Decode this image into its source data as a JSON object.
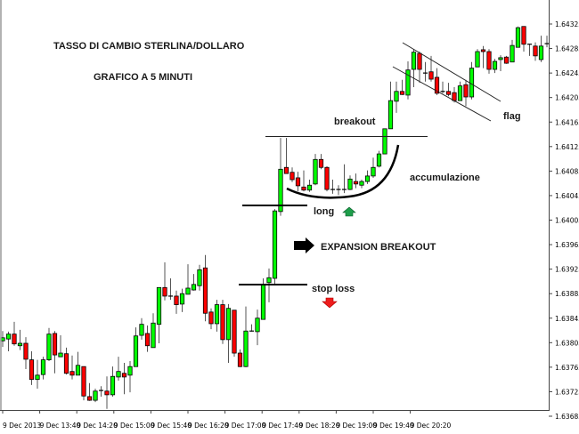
{
  "chart_data": {
    "type": "candlestick",
    "title": "TASSO DI CAMBIO STERLINA/DOLLARO",
    "subtitle": "GRAFICO A 5 MINUTI",
    "xlabel": "",
    "ylabel": "",
    "ylim": [
      1.63685,
      1.64325
    ],
    "y_ticks": [
      "1.64325",
      "1.64285",
      "1.64245",
      "1.64205",
      "1.64165",
      "1.64125",
      "1.64085",
      "1.64045",
      "1.64005",
      "1.63965",
      "1.63925",
      "1.63885",
      "1.63845",
      "1.63805",
      "1.63765",
      "1.63725",
      "1.63685"
    ],
    "x_ticks": [
      "9 Dec 2013",
      "9 Dec 13:40",
      "9 Dec 14:20",
      "9 Dec 15:00",
      "9 Dec 15:40",
      "9 Dec 16:20",
      "9 Dec 17:00",
      "9 Dec 17:40",
      "9 Dec 18:20",
      "9 Dec 19:00",
      "9 Dec 19:40",
      "9 Dec 20:20"
    ],
    "grid": false,
    "colors": {
      "up": "#00ff00",
      "down": "#ff0000",
      "outline": "#000000"
    },
    "ohlc_fields": [
      "open",
      "high",
      "low",
      "close"
    ],
    "candles": [
      [
        1.63808,
        1.63824,
        1.63798,
        1.63813
      ],
      [
        1.63811,
        1.63823,
        1.63791,
        1.63819
      ],
      [
        1.63819,
        1.63839,
        1.638,
        1.63803
      ],
      [
        1.638,
        1.63826,
        1.63793,
        1.63804
      ],
      [
        1.63804,
        1.63814,
        1.63762,
        1.63778
      ],
      [
        1.63777,
        1.63791,
        1.63736,
        1.63745
      ],
      [
        1.63745,
        1.63777,
        1.6373,
        1.63752
      ],
      [
        1.63753,
        1.63782,
        1.63745,
        1.63777
      ],
      [
        1.63777,
        1.63829,
        1.63775,
        1.63819
      ],
      [
        1.6382,
        1.63824,
        1.63755,
        1.63785
      ],
      [
        1.63782,
        1.63817,
        1.63782,
        1.63788
      ],
      [
        1.63787,
        1.63797,
        1.63753,
        1.63755
      ],
      [
        1.63758,
        1.63784,
        1.63745,
        1.63752
      ],
      [
        1.63752,
        1.6379,
        1.63752,
        1.63768
      ],
      [
        1.63766,
        1.63766,
        1.63711,
        1.63718
      ],
      [
        1.63717,
        1.63739,
        1.6371,
        1.63711
      ],
      [
        1.63711,
        1.6373,
        1.63708,
        1.63726
      ],
      [
        1.63727,
        1.63734,
        1.63717,
        1.63727
      ],
      [
        1.63726,
        1.6375,
        1.63697,
        1.6372
      ],
      [
        1.6372,
        1.63766,
        1.63717,
        1.6375
      ],
      [
        1.63749,
        1.63782,
        1.63743,
        1.63758
      ],
      [
        1.63755,
        1.63772,
        1.63721,
        1.63749
      ],
      [
        1.63752,
        1.63775,
        1.63724,
        1.63766
      ],
      [
        1.63766,
        1.6383,
        1.63766,
        1.63816
      ],
      [
        1.63817,
        1.63845,
        1.6381,
        1.63835
      ],
      [
        1.6382,
        1.63833,
        1.6379,
        1.638
      ],
      [
        1.63797,
        1.63853,
        1.63797,
        1.63837
      ],
      [
        1.63835,
        1.63895,
        1.63804,
        1.63895
      ],
      [
        1.63895,
        1.63936,
        1.63874,
        1.63881
      ],
      [
        1.63881,
        1.6391,
        1.63875,
        1.63881
      ],
      [
        1.63881,
        1.6389,
        1.63852,
        1.63867
      ],
      [
        1.63868,
        1.63893,
        1.63855,
        1.63885
      ],
      [
        1.63884,
        1.63933,
        1.63884,
        1.63894
      ],
      [
        1.63891,
        1.63917,
        1.6389,
        1.639
      ],
      [
        1.63898,
        1.63932,
        1.6389,
        1.63924
      ],
      [
        1.63927,
        1.63948,
        1.6384,
        1.63853
      ],
      [
        1.63855,
        1.63861,
        1.63827,
        1.63836
      ],
      [
        1.63836,
        1.63875,
        1.63823,
        1.63867
      ],
      [
        1.63867,
        1.63875,
        1.63803,
        1.6381
      ],
      [
        1.6381,
        1.63868,
        1.63772,
        1.63861
      ],
      [
        1.63858,
        1.63858,
        1.63782,
        1.63788
      ],
      [
        1.63788,
        1.63794,
        1.63765,
        1.63766
      ],
      [
        1.63766,
        1.63864,
        1.63765,
        1.63824
      ],
      [
        1.63824,
        1.63835,
        1.63823,
        1.63824
      ],
      [
        1.63823,
        1.63859,
        1.63801,
        1.63845
      ],
      [
        1.63843,
        1.6391,
        1.63843,
        1.639
      ],
      [
        1.63903,
        1.63926,
        1.63871,
        1.63911
      ],
      [
        1.6391,
        1.64023,
        1.639,
        1.6402
      ],
      [
        1.64019,
        1.64139,
        1.64012,
        1.64088
      ],
      [
        1.64091,
        1.64139,
        1.64081,
        1.64081
      ],
      [
        1.64083,
        1.64091,
        1.64067,
        1.64071
      ],
      [
        1.64074,
        1.64084,
        1.64052,
        1.64061
      ],
      [
        1.64059,
        1.64086,
        1.64052,
        1.64054
      ],
      [
        1.64054,
        1.64071,
        1.64051,
        1.64062
      ],
      [
        1.64064,
        1.64113,
        1.64062,
        1.64104
      ],
      [
        1.64104,
        1.64113,
        1.64088,
        1.64091
      ],
      [
        1.64091,
        1.64093,
        1.64052,
        1.64055
      ],
      [
        1.64055,
        1.64071,
        1.64048,
        1.64055
      ],
      [
        1.64055,
        1.64062,
        1.64046,
        1.64055
      ],
      [
        1.64055,
        1.64096,
        1.64049,
        1.64055
      ],
      [
        1.64055,
        1.64078,
        1.64054,
        1.64072
      ],
      [
        1.64068,
        1.64081,
        1.64057,
        1.64064
      ],
      [
        1.64062,
        1.64071,
        1.64057,
        1.64068
      ],
      [
        1.64068,
        1.64086,
        1.64064,
        1.64077
      ],
      [
        1.64077,
        1.64107,
        1.64074,
        1.64091
      ],
      [
        1.64093,
        1.64118,
        1.64091,
        1.64113
      ],
      [
        1.64113,
        1.64154,
        1.64113,
        1.64154
      ],
      [
        1.64154,
        1.64231,
        1.64154,
        1.642
      ],
      [
        1.64199,
        1.64231,
        1.6418,
        1.64215
      ],
      [
        1.64215,
        1.64234,
        1.64209,
        1.6421
      ],
      [
        1.64209,
        1.64264,
        1.64202,
        1.6425
      ],
      [
        1.64251,
        1.64284,
        1.64222,
        1.64279
      ],
      [
        1.64277,
        1.6428,
        1.64229,
        1.64251
      ],
      [
        1.64245,
        1.64263,
        1.64231,
        1.64245
      ],
      [
        1.64247,
        1.64273,
        1.64231,
        1.64235
      ],
      [
        1.64238,
        1.64253,
        1.64209,
        1.64212
      ],
      [
        1.64215,
        1.64231,
        1.64212,
        1.64215
      ],
      [
        1.64215,
        1.64229,
        1.64207,
        1.6421
      ],
      [
        1.64213,
        1.64222,
        1.64197,
        1.642
      ],
      [
        1.642,
        1.64231,
        1.642,
        1.64224
      ],
      [
        1.64226,
        1.64234,
        1.64191,
        1.64206
      ],
      [
        1.64206,
        1.64263,
        1.64202,
        1.64253
      ],
      [
        1.64255,
        1.64284,
        1.64255,
        1.6428
      ],
      [
        1.64283,
        1.64289,
        1.64253,
        1.6428
      ],
      [
        1.6428,
        1.64284,
        1.64244,
        1.64251
      ],
      [
        1.64251,
        1.64268,
        1.64245,
        1.64264
      ],
      [
        1.64267,
        1.64274,
        1.64248,
        1.6427
      ],
      [
        1.64271,
        1.64273,
        1.6426,
        1.64261
      ],
      [
        1.64263,
        1.64299,
        1.64263,
        1.6429
      ],
      [
        1.64287,
        1.64321,
        1.64287,
        1.64319
      ],
      [
        1.64321,
        1.64321,
        1.6428,
        1.64292
      ],
      [
        1.64292,
        1.64292,
        1.64273,
        1.64292
      ],
      [
        1.64289,
        1.64295,
        1.64265,
        1.64273
      ],
      [
        1.64267,
        1.64306,
        1.64263,
        1.64289
      ],
      [
        1.64293,
        1.64306,
        1.64287,
        1.64293
      ]
    ],
    "annotations": {
      "breakout": "breakout",
      "accumulation": "accumulazione",
      "long": "long",
      "expansion": "EXPANSION BREAKOUT",
      "stop_loss": "stop loss",
      "flag": "flag"
    },
    "annotation_colors": {
      "long_arrow": "#1e9e4a",
      "stop_arrow": "#ee1c1c",
      "expansion_arrow": "#000000"
    }
  }
}
